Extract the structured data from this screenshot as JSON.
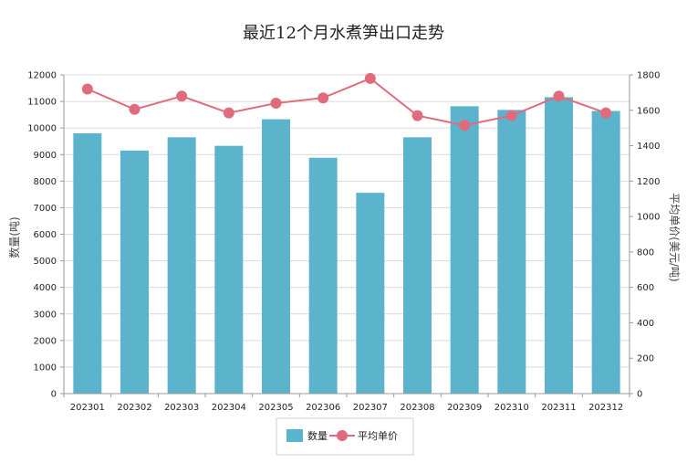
{
  "chart_data": {
    "type": "bar",
    "title": "最近12个月水煮笋出口走势",
    "categories": [
      "202301",
      "202302",
      "202303",
      "202304",
      "202305",
      "202306",
      "202307",
      "202308",
      "202309",
      "202310",
      "202311",
      "202312"
    ],
    "series": [
      {
        "name": "数量",
        "type": "bar",
        "axis": "left",
        "values": [
          9800,
          9150,
          9650,
          9330,
          10330,
          8880,
          7560,
          9650,
          10820,
          10680,
          11160,
          10640
        ]
      },
      {
        "name": "平均单价",
        "type": "line",
        "axis": "right",
        "values": [
          1720,
          1605,
          1680,
          1585,
          1640,
          1670,
          1780,
          1570,
          1515,
          1570,
          1680,
          1585
        ]
      }
    ],
    "ylabel": "数量(吨)",
    "y2label": "平均单价(美元/吨)",
    "ylim": [
      0,
      12000
    ],
    "y2lim": [
      0,
      1800
    ],
    "yticks": [
      "0",
      "1000",
      "2000",
      "3000",
      "4000",
      "5000",
      "6000",
      "7000",
      "8000",
      "9000",
      "10000",
      "11000",
      "12000"
    ],
    "y2ticks": [
      "0",
      "200",
      "400",
      "600",
      "800",
      "1000",
      "1200",
      "1400",
      "1600",
      "1800"
    ],
    "grid": true,
    "legend_position": "bottom",
    "colors": {
      "bar": "#5cb3cc",
      "line": "#e06b7c",
      "grid": "#d9d9d9",
      "axis": "#999999"
    }
  }
}
